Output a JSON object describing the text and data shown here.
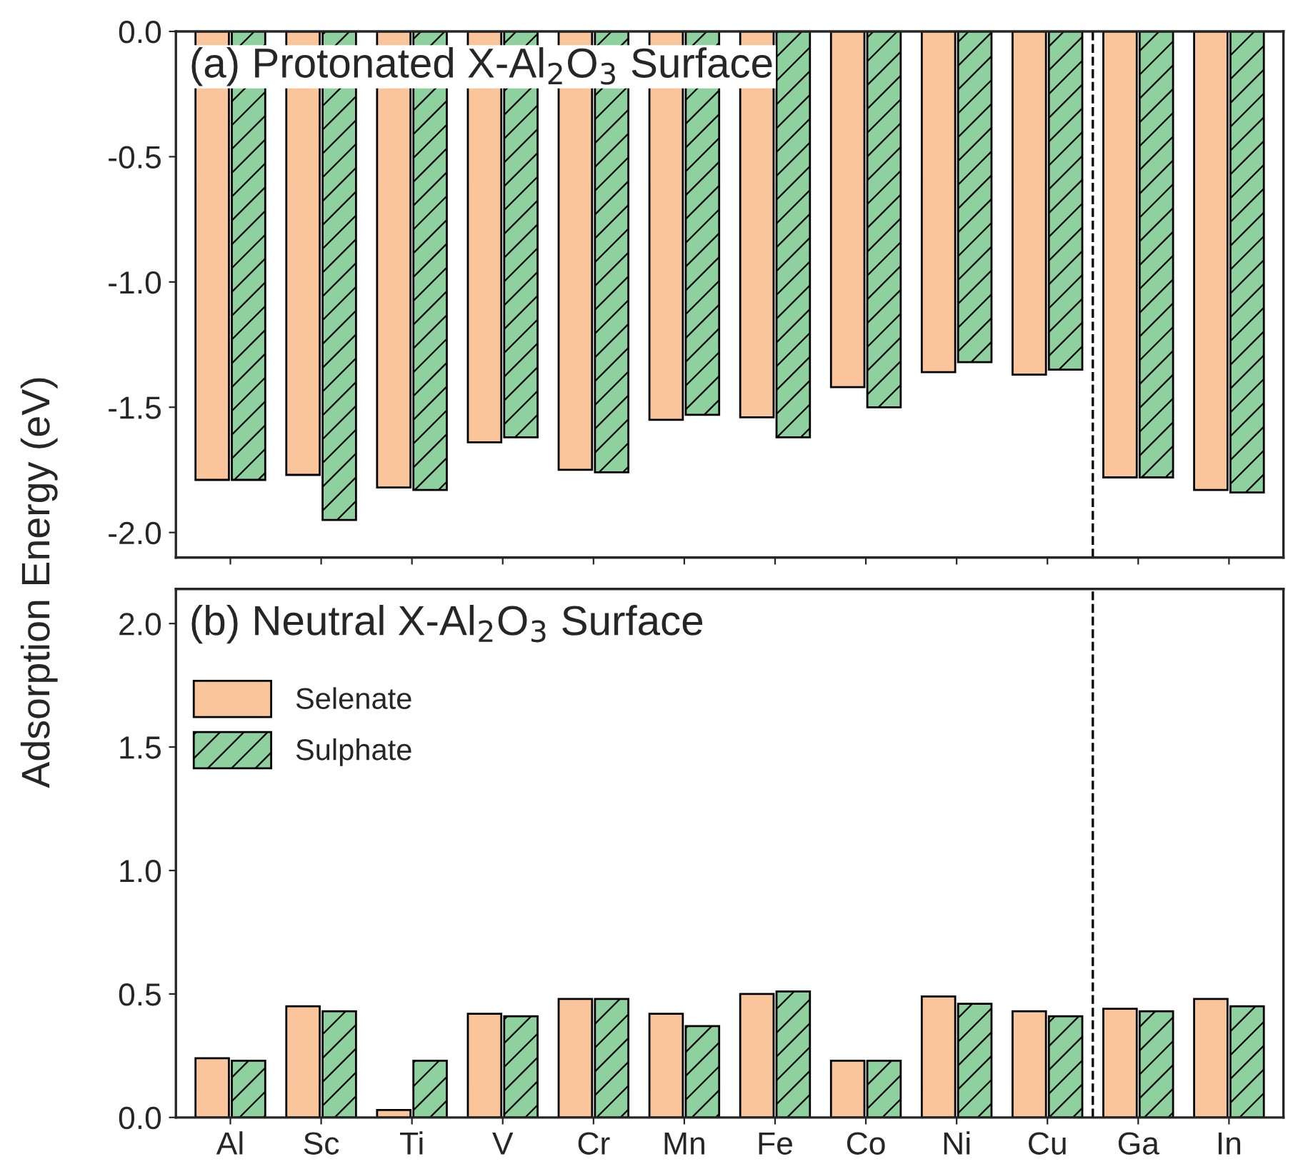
{
  "chart_data": [
    {
      "type": "bar",
      "title": "(a) Protonated X-Al$_{2}$O$_{3}$ Surface",
      "ylabel": "Adsorption Energy (eV)",
      "categories": [
        null,
        null,
        null,
        null,
        null,
        null,
        null,
        null,
        null,
        null,
        null,
        null
      ],
      "series": [
        {
          "color": "#fbc59b",
          "values": [
            -1.79,
            -1.77,
            -1.82,
            -1.64,
            -1.75,
            -1.55,
            -1.54,
            -1.42,
            -1.36,
            -1.37,
            -1.78,
            -1.83
          ]
        },
        {
          "color": "#8fd19e",
          "values": [
            -1.79,
            -1.95,
            -1.83,
            -1.62,
            -1.76,
            -1.53,
            -1.62,
            -1.5,
            -1.32,
            -1.35,
            -1.78,
            -1.84
          ]
        }
      ],
      "ylim": [
        -2.1,
        0
      ],
      "yticks": [
        {
          "value": -2.0,
          "label": "-2.0"
        },
        {
          "value": -1.5,
          "label": "-1.5"
        },
        {
          "value": -1.0,
          "label": "-1.0"
        },
        {
          "value": -0.5,
          "label": "-0.5"
        },
        {
          "value": 0.0,
          "label": "0.0"
        }
      ],
      "tick_labels": "y",
      "grid": false
    },
    {
      "type": "bar",
      "title": "(b) Neutral X-Al$_{2}$O$_{3}$ Surface",
      "categories": [
        "Al",
        "Sc",
        "Ti",
        "V",
        "Cr",
        "Mn",
        "Fe",
        "Co",
        "Ni",
        "Cu",
        "Ga",
        "In"
      ],
      "series": [
        {
          "name": "Selenate",
          "color": "#fbc59b",
          "values": [
            0.24,
            0.45,
            0.03,
            0.42,
            0.48,
            0.42,
            0.5,
            0.23,
            0.49,
            0.43,
            0.44,
            0.48
          ]
        },
        {
          "name": "Sulphate",
          "color": "#8fd19e",
          "values": [
            0.23,
            0.43,
            0.23,
            0.41,
            0.48,
            0.37,
            0.51,
            0.23,
            0.46,
            0.41,
            0.43,
            0.45
          ]
        }
      ],
      "ylim": [
        0,
        2.14
      ],
      "yticks": [
        {
          "value": 0.0,
          "label": "0.0"
        },
        {
          "value": 0.5,
          "label": "0.5"
        },
        {
          "value": 1.0,
          "label": "1.0"
        },
        {
          "value": 1.5,
          "label": "1.5"
        },
        {
          "value": 2.0,
          "label": "2.0"
        }
      ],
      "legend": "top left",
      "grid": false
    }
  ]
}
